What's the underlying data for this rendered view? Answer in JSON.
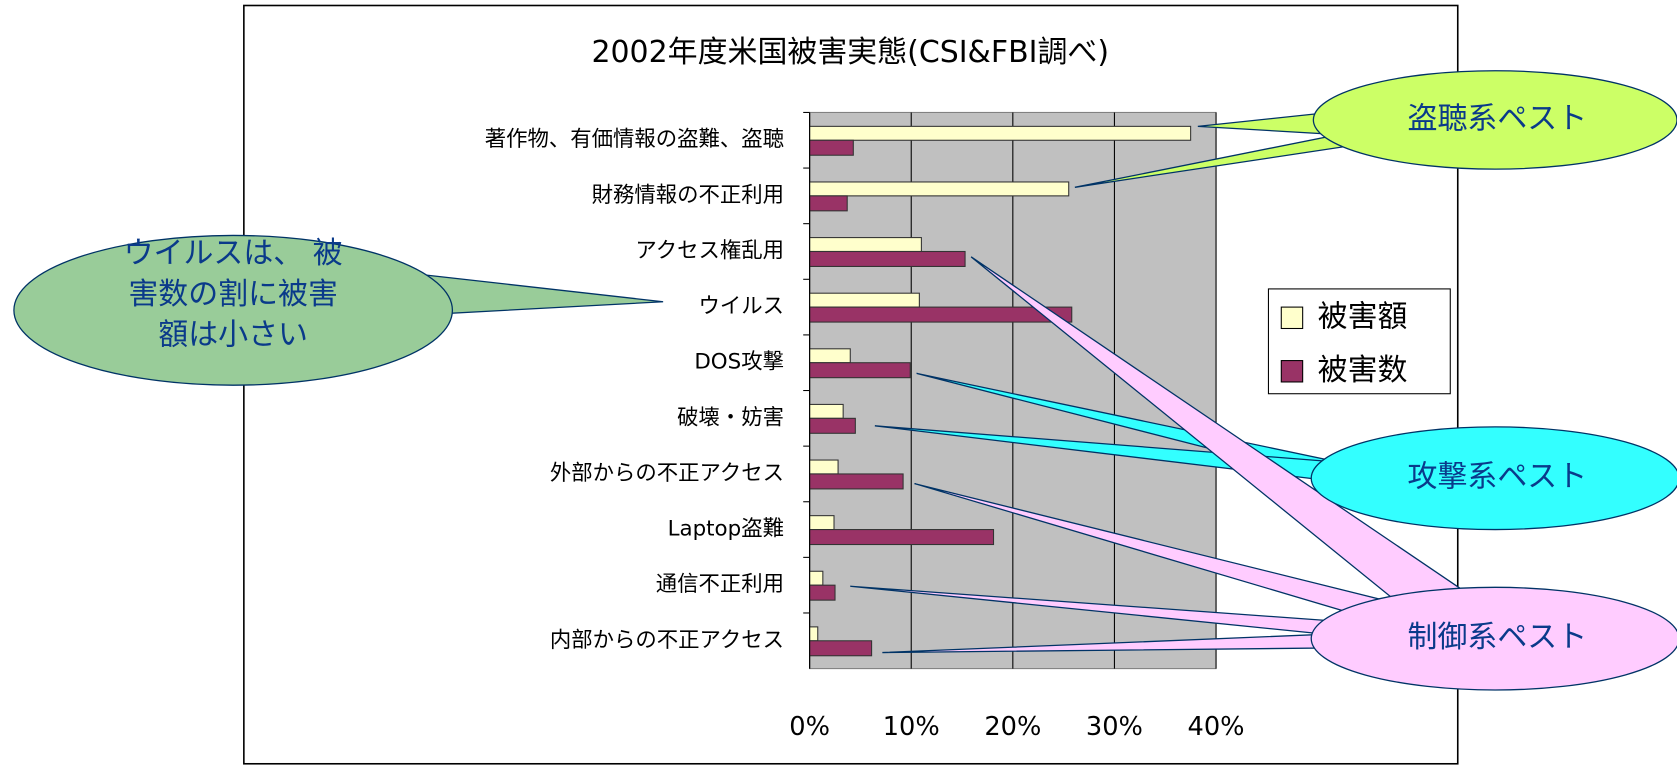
{
  "chart_data": {
    "type": "bar",
    "orientation": "horizontal",
    "title": "2002年度米国被害実態(CSI&FBI調べ)",
    "categories": [
      "著作物、有価情報の盗難、盗聴",
      "財務情報の不正利用",
      "アクセス権乱用",
      "ウイルス",
      "DOS攻撃",
      "破壊・妨害",
      "外部からの不正アクセス",
      "Laptop盗難",
      "通信不正利用",
      "内部からの不正アクセス"
    ],
    "series": [
      {
        "name": "被害額",
        "color": "#ffffcc",
        "values": [
          37.5,
          25.5,
          11,
          10.8,
          4,
          3.3,
          2.8,
          2.4,
          1.3,
          0.8
        ]
      },
      {
        "name": "被害数",
        "color": "#993366",
        "values": [
          4.3,
          3.7,
          15.3,
          25.8,
          9.9,
          4.5,
          9.2,
          18.1,
          2.5,
          6.1
        ]
      }
    ],
    "xlim": [
      0,
      40
    ],
    "xticks": [
      {
        "value": 0,
        "label": "0%"
      },
      {
        "value": 10,
        "label": "10%"
      },
      {
        "value": 20,
        "label": "20%"
      },
      {
        "value": 30,
        "label": "30%"
      },
      {
        "value": 40,
        "label": "40%"
      }
    ],
    "grid": true,
    "legend": "right"
  },
  "callouts": {
    "virus": [
      "ウイルスは、 被",
      "害数の割に被害",
      "額は小さい"
    ],
    "eavesdrop": "盗聴系ペスト",
    "attack": "攻撃系ペスト",
    "control": "制御系ペスト"
  }
}
